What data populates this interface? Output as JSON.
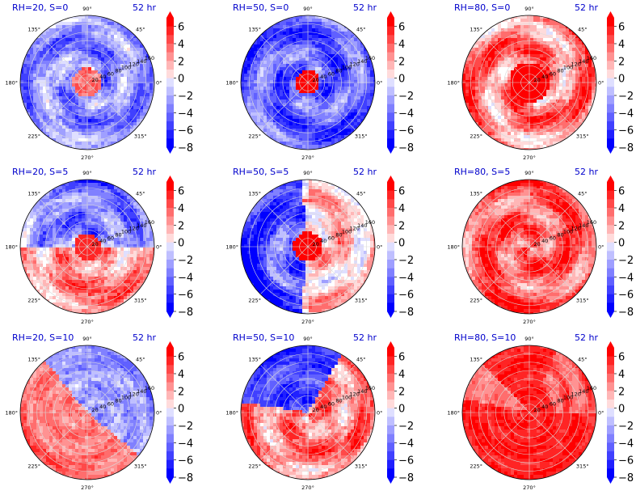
{
  "colors": {
    "title": "#0000cc",
    "positive": "#ff0000",
    "negative": "#0000ff",
    "grid": "#d9d9d9"
  },
  "chart_data": [
    {
      "type": "heatmap",
      "projection": "polar",
      "title": "RH=20, S=0",
      "time_label": "52 hr",
      "pattern": "neg_ring",
      "angle_ticks": [
        "0°",
        "45°",
        "90°",
        "135°",
        "180°",
        "225°",
        "270°",
        "315°"
      ],
      "radial_ticks": [
        "20",
        "40",
        "60",
        "80",
        "100",
        "120",
        "140",
        "160"
      ],
      "colorbar_ticks": [
        "6",
        "4",
        "2",
        "0",
        "−2",
        "−4",
        "−6",
        "−8"
      ],
      "colorbar_range": [
        -8,
        7
      ]
    },
    {
      "type": "heatmap",
      "projection": "polar",
      "title": "RH=50, S=0",
      "time_label": "52 hr",
      "pattern": "neg_strong",
      "angle_ticks": [
        "0°",
        "45°",
        "90°",
        "135°",
        "180°",
        "225°",
        "270°",
        "315°"
      ],
      "radial_ticks": [
        "20",
        "40",
        "60",
        "80",
        "100",
        "120",
        "140",
        "160"
      ],
      "colorbar_ticks": [
        "6",
        "4",
        "2",
        "0",
        "−2",
        "−4",
        "−6",
        "−8"
      ],
      "colorbar_range": [
        -8,
        7
      ]
    },
    {
      "type": "heatmap",
      "projection": "polar",
      "title": "RH=80, S=0",
      "time_label": "52 hr",
      "pattern": "pos_swirl",
      "angle_ticks": [
        "0°",
        "45°",
        "90°",
        "135°",
        "180°",
        "225°",
        "270°",
        "315°"
      ],
      "radial_ticks": [
        "20",
        "40",
        "60",
        "80",
        "100",
        "120",
        "140",
        "160"
      ],
      "colorbar_ticks": [
        "6",
        "4",
        "2",
        "0",
        "−2",
        "−4",
        "−6",
        "−8"
      ],
      "colorbar_range": [
        -8,
        7
      ]
    },
    {
      "type": "heatmap",
      "projection": "polar",
      "title": "RH=20, S=5",
      "time_label": "52 hr",
      "pattern": "mixed_ring",
      "angle_ticks": [
        "0°",
        "45°",
        "90°",
        "135°",
        "180°",
        "225°",
        "270°",
        "315°"
      ],
      "radial_ticks": [
        "20",
        "40",
        "60",
        "80",
        "100",
        "120",
        "140",
        "160"
      ],
      "colorbar_ticks": [
        "6",
        "4",
        "2",
        "0",
        "−2",
        "−4",
        "−6",
        "−8"
      ],
      "colorbar_range": [
        -8,
        7
      ]
    },
    {
      "type": "heatmap",
      "projection": "polar",
      "title": "RH=50, S=5",
      "time_label": "52 hr",
      "pattern": "neg_left",
      "angle_ticks": [
        "0°",
        "45°",
        "90°",
        "135°",
        "180°",
        "225°",
        "270°",
        "315°"
      ],
      "radial_ticks": [
        "20",
        "40",
        "60",
        "80",
        "100",
        "120",
        "140",
        "160"
      ],
      "colorbar_ticks": [
        "6",
        "4",
        "2",
        "0",
        "−2",
        "−4",
        "−6",
        "−8"
      ],
      "colorbar_range": [
        -8,
        7
      ]
    },
    {
      "type": "heatmap",
      "projection": "polar",
      "title": "RH=80, S=5",
      "time_label": "52 hr",
      "pattern": "pos_full",
      "angle_ticks": [
        "0°",
        "45°",
        "90°",
        "135°",
        "180°",
        "225°",
        "270°",
        "315°"
      ],
      "radial_ticks": [
        "20",
        "40",
        "60",
        "80",
        "100",
        "120",
        "140",
        "160"
      ],
      "colorbar_ticks": [
        "6",
        "4",
        "2",
        "0",
        "−2",
        "−4",
        "−6",
        "−8"
      ],
      "colorbar_range": [
        -8,
        7
      ]
    },
    {
      "type": "heatmap",
      "projection": "polar",
      "title": "RH=20, S=10",
      "time_label": "52 hr",
      "pattern": "diag_split",
      "angle_ticks": [
        "0°",
        "45°",
        "90°",
        "135°",
        "180°",
        "225°",
        "270°",
        "315°"
      ],
      "radial_ticks": [
        "20",
        "40",
        "60",
        "80",
        "100",
        "120",
        "140",
        "160"
      ],
      "colorbar_ticks": [
        "6",
        "4",
        "2",
        "0",
        "−2",
        "−4",
        "−6",
        "−8"
      ],
      "colorbar_range": [
        -8,
        7
      ]
    },
    {
      "type": "heatmap",
      "projection": "polar",
      "title": "RH=50, S=10",
      "time_label": "52 hr",
      "pattern": "top_neg",
      "angle_ticks": [
        "0°",
        "45°",
        "90°",
        "135°",
        "180°",
        "225°",
        "270°",
        "315°"
      ],
      "radial_ticks": [
        "20",
        "40",
        "60",
        "80",
        "100",
        "120",
        "140",
        "160"
      ],
      "colorbar_ticks": [
        "6",
        "4",
        "2",
        "0",
        "−2",
        "−4",
        "−6",
        "−8"
      ],
      "colorbar_range": [
        -8,
        7
      ]
    },
    {
      "type": "heatmap",
      "projection": "polar",
      "title": "RH=80, S=10",
      "time_label": "52 hr",
      "pattern": "pos_saturated",
      "angle_ticks": [
        "0°",
        "45°",
        "90°",
        "135°",
        "180°",
        "225°",
        "270°",
        "315°"
      ],
      "radial_ticks": [
        "20",
        "40",
        "60",
        "80",
        "100",
        "120",
        "140",
        "160"
      ],
      "colorbar_ticks": [
        "6",
        "4",
        "2",
        "0",
        "−2",
        "−4",
        "−6",
        "−8"
      ],
      "colorbar_range": [
        -8,
        7
      ]
    }
  ]
}
